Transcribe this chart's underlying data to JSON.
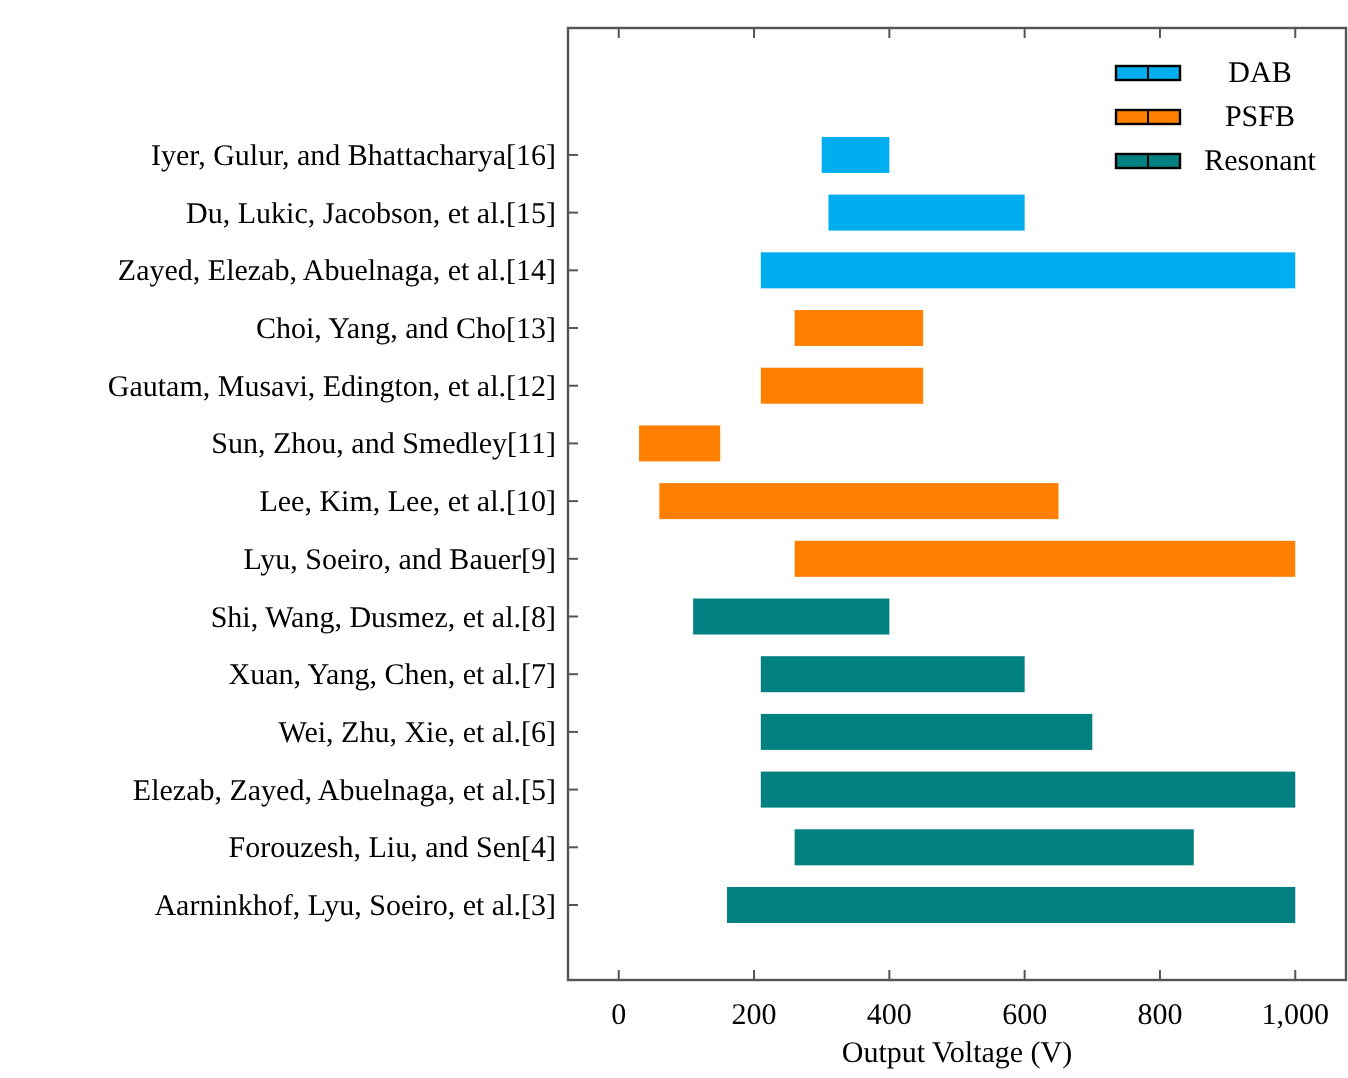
{
  "chart_data": {
    "type": "bar",
    "orientation": "horizontal",
    "xlabel": "Output Voltage (V)",
    "categories": [
      "Iyer, Gulur, and Bhattacharya[16]",
      "Du, Lukic, Jacobson, et al.[15]",
      "Zayed, Elezab, Abuelnaga, et al.[14]",
      "Choi, Yang, and Cho[13]",
      "Gautam, Musavi, Edington, et al.[12]",
      "Sun, Zhou, and Smedley[11]",
      "Lee, Kim, Lee, et al.[10]",
      "Lyu, Soeiro, and Bauer[9]",
      "Shi, Wang, Dusmez, et al.[8]",
      "Xuan, Yang, Chen, et al.[7]",
      "Wei, Zhu, Xie, et al.[6]",
      "Elezab, Zayed, Abuelnaga, et al.[5]",
      "Forouzesh, Liu, and Sen[4]",
      "Aarninkhof, Lyu, Soeiro, et al.[3]"
    ],
    "series": [
      {
        "name": "DAB",
        "color": "#00aeef",
        "base": [
          300,
          310,
          210,
          null,
          null,
          null,
          null,
          null,
          null,
          null,
          null,
          null,
          null,
          null
        ],
        "values": [
          100,
          290,
          790,
          null,
          null,
          null,
          null,
          null,
          null,
          null,
          null,
          null,
          null,
          null
        ]
      },
      {
        "name": "PSFB",
        "color": "#ff8000",
        "base": [
          null,
          null,
          null,
          260,
          210,
          30,
          60,
          260,
          null,
          null,
          null,
          null,
          null,
          null
        ],
        "values": [
          null,
          null,
          null,
          190,
          240,
          120,
          590,
          740,
          null,
          null,
          null,
          null,
          null,
          null
        ]
      },
      {
        "name": "Resonant",
        "color": "#008080",
        "base": [
          null,
          null,
          null,
          null,
          null,
          null,
          null,
          null,
          110,
          210,
          210,
          210,
          260,
          160
        ],
        "values": [
          null,
          null,
          null,
          null,
          null,
          null,
          null,
          null,
          290,
          390,
          490,
          790,
          590,
          840
        ]
      }
    ],
    "xlim": [
      -75,
      1075
    ],
    "xticks": [
      0,
      200,
      400,
      600,
      800,
      {
        "value": 1000,
        "label": "1,000"
      }
    ],
    "legend": "top right"
  }
}
